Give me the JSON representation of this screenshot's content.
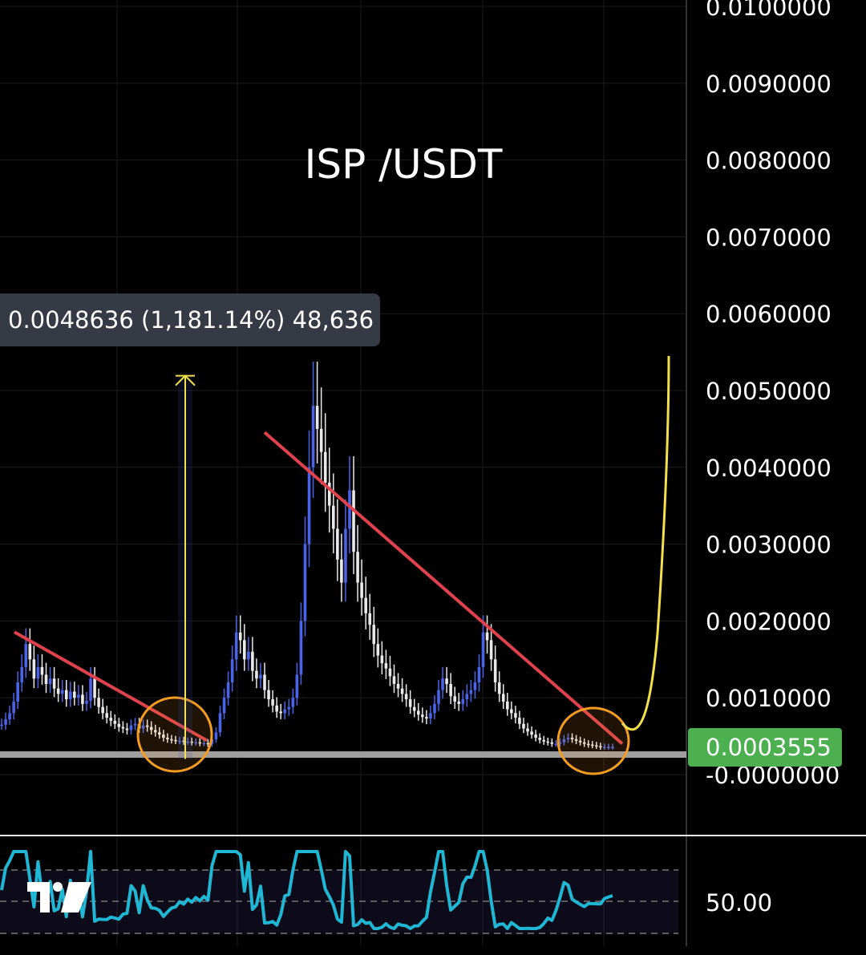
{
  "chart_data": {
    "type": "candlestick",
    "pair": "ISP /USDT",
    "yaxis": {
      "ticks": [
        0.01,
        0.009,
        0.008,
        0.007,
        0.006,
        0.005,
        0.004,
        0.003,
        0.002,
        0.001,
        -0.0
      ],
      "tick_labels": [
        "0.0100000",
        "0.0090000",
        "0.0080000",
        "0.0070000",
        "0.0060000",
        "0.0050000",
        "0.0040000",
        "0.0030000",
        "0.0020000",
        "0.0010000",
        "-0.0000000"
      ],
      "ylim": [
        -0.0008,
        0.0102
      ]
    },
    "current_price": {
      "value": 0.0003555,
      "label": "0.0003555",
      "color": "#4caf50"
    },
    "measure": {
      "label": "0.0048636 (1,181.14%) 48,636",
      "from": 0.0004118,
      "to": 0.0052754
    },
    "close_series": [
      0.00065,
      0.00072,
      0.0008,
      0.00095,
      0.0012,
      0.0014,
      0.0017,
      0.0015,
      0.00125,
      0.0014,
      0.0013,
      0.00118,
      0.00125,
      0.00112,
      0.00105,
      0.0011,
      0.00098,
      0.00108,
      0.001,
      0.00104,
      0.00092,
      0.00096,
      0.00125,
      0.001,
      0.00088,
      0.0008,
      0.00074,
      0.0007,
      0.00066,
      0.00062,
      0.0006,
      0.00058,
      0.00064,
      0.00066,
      0.0006,
      0.00064,
      0.00062,
      0.00058,
      0.00055,
      0.00052,
      0.00048,
      0.00046,
      0.00045,
      0.00044,
      0.00044,
      0.00043,
      0.00043,
      0.00042,
      0.00042,
      0.00041,
      0.00041,
      0.0004,
      0.00046,
      0.00055,
      0.0008,
      0.001,
      0.0012,
      0.0015,
      0.00185,
      0.00175,
      0.0015,
      0.0016,
      0.00135,
      0.00125,
      0.0013,
      0.0011,
      0.00098,
      0.0009,
      0.00082,
      0.0008,
      0.00085,
      0.00088,
      0.001,
      0.0013,
      0.002,
      0.003,
      0.004,
      0.0048,
      0.0045,
      0.0042,
      0.0038,
      0.0035,
      0.0032,
      0.0028,
      0.0025,
      0.0032,
      0.0037,
      0.0029,
      0.0025,
      0.0023,
      0.0021,
      0.00195,
      0.0017,
      0.00155,
      0.00145,
      0.00138,
      0.00128,
      0.00118,
      0.00112,
      0.00105,
      0.00098,
      0.00088,
      0.00083,
      0.00078,
      0.00075,
      0.00073,
      0.0008,
      0.00092,
      0.0011,
      0.00125,
      0.00118,
      0.00102,
      0.00095,
      0.00092,
      0.00098,
      0.00105,
      0.0011,
      0.0012,
      0.0014,
      0.00185,
      0.00175,
      0.0015,
      0.0012,
      0.00105,
      0.00095,
      0.00085,
      0.0008,
      0.00074,
      0.00066,
      0.0006,
      0.00056,
      0.00052,
      0.00048,
      0.00045,
      0.00043,
      0.00042,
      0.0004,
      0.0004,
      0.00042,
      0.00046,
      0.00048,
      0.00046,
      0.00044,
      0.00042,
      0.0004,
      0.00039,
      0.00038,
      0.00037,
      0.00036,
      0.00036,
      0.00036,
      0.00036
    ],
    "trendlines": [
      {
        "from": [
          0.001855,
          0
        ],
        "to": [
          0.00034,
          1
        ],
        "color": "#e0414c"
      },
      {
        "from": [
          0.004455,
          0
        ],
        "to": [
          0.00035,
          1
        ],
        "color": "#e0414c"
      }
    ],
    "support_level": {
      "value": 0.0003555,
      "color": "#9e9e9e"
    },
    "projection": {
      "target": 0.00545,
      "color": "#f3e04a"
    },
    "oscillator": {
      "label": "50.00",
      "level": 50
    },
    "colors": {
      "up": "#4b63e8",
      "down": "#e9e9e9",
      "grid": "#1c1c1c",
      "osc": "#1fb7d4",
      "circle": "#f39c21"
    }
  }
}
